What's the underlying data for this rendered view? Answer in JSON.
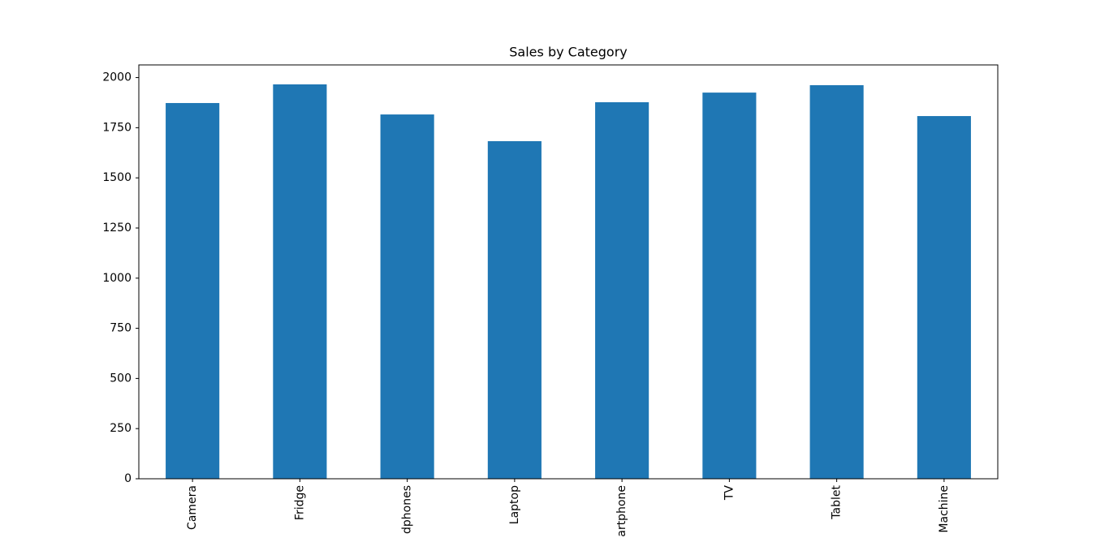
{
  "chart_data": {
    "type": "bar",
    "title": "Sales by Category",
    "categories": [
      "Camera",
      "Fridge",
      "dphones",
      "Laptop",
      "artphone",
      "TV",
      "Tablet",
      "Machine"
    ],
    "values": [
      1873,
      1966,
      1816,
      1683,
      1877,
      1925,
      1962,
      1808
    ],
    "color": "#1f77b4",
    "ylim": [
      0,
      2063
    ],
    "yticks": [
      0,
      250,
      500,
      750,
      1000,
      1250,
      1500,
      1750,
      2000
    ],
    "grid": false
  }
}
